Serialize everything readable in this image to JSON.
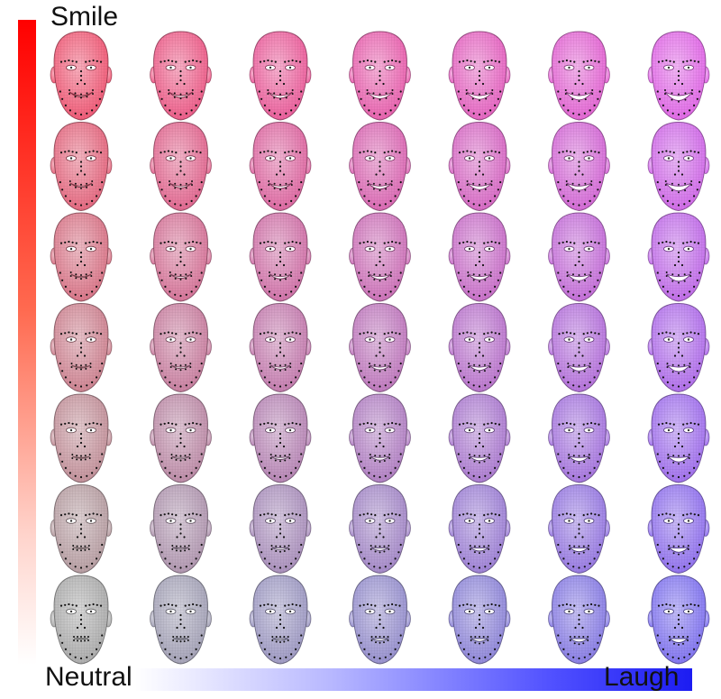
{
  "labels": {
    "top": "Smile",
    "left": "Neutral",
    "right": "Laugh"
  },
  "grid": {
    "rows": 7,
    "cols": 7
  },
  "colors": {
    "smile_axis": "#ff0000",
    "laugh_axis": "#1c1cf2",
    "neutral": "#aaaaaa"
  }
}
